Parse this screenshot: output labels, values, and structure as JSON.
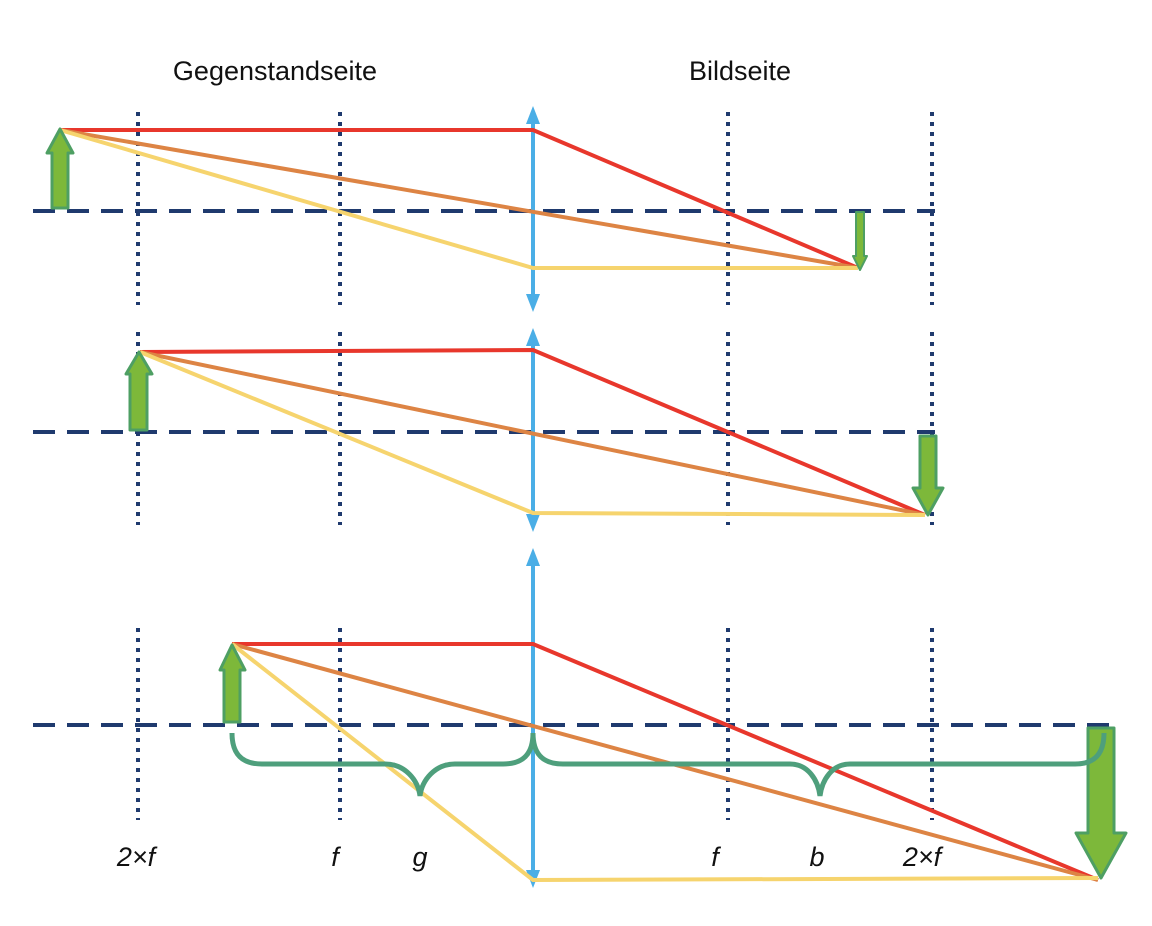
{
  "headers": {
    "object_side": "Gegenstandseite",
    "image_side": "Bildseite"
  },
  "labels": {
    "two_f_left": "2×f",
    "f_left": "f",
    "g": "g",
    "f_right": "f",
    "b": "b",
    "two_f_right": "2×f"
  },
  "colors": {
    "optical_axis": "#1f3a6e",
    "focal_markers": "#1f3a6e",
    "lens": "#4aaee6",
    "ray_parallel": "#e8372c",
    "ray_center": "#dd8444",
    "ray_focal": "#f6d46e",
    "arrow_fill": "#7db83a",
    "arrow_stroke": "#4e9f63",
    "brace": "#4e9f7c"
  },
  "icons": {
    "object_arrow": "up-arrow-icon",
    "image_arrow": "down-arrow-icon",
    "lens": "double-headed-arrow-icon"
  }
}
